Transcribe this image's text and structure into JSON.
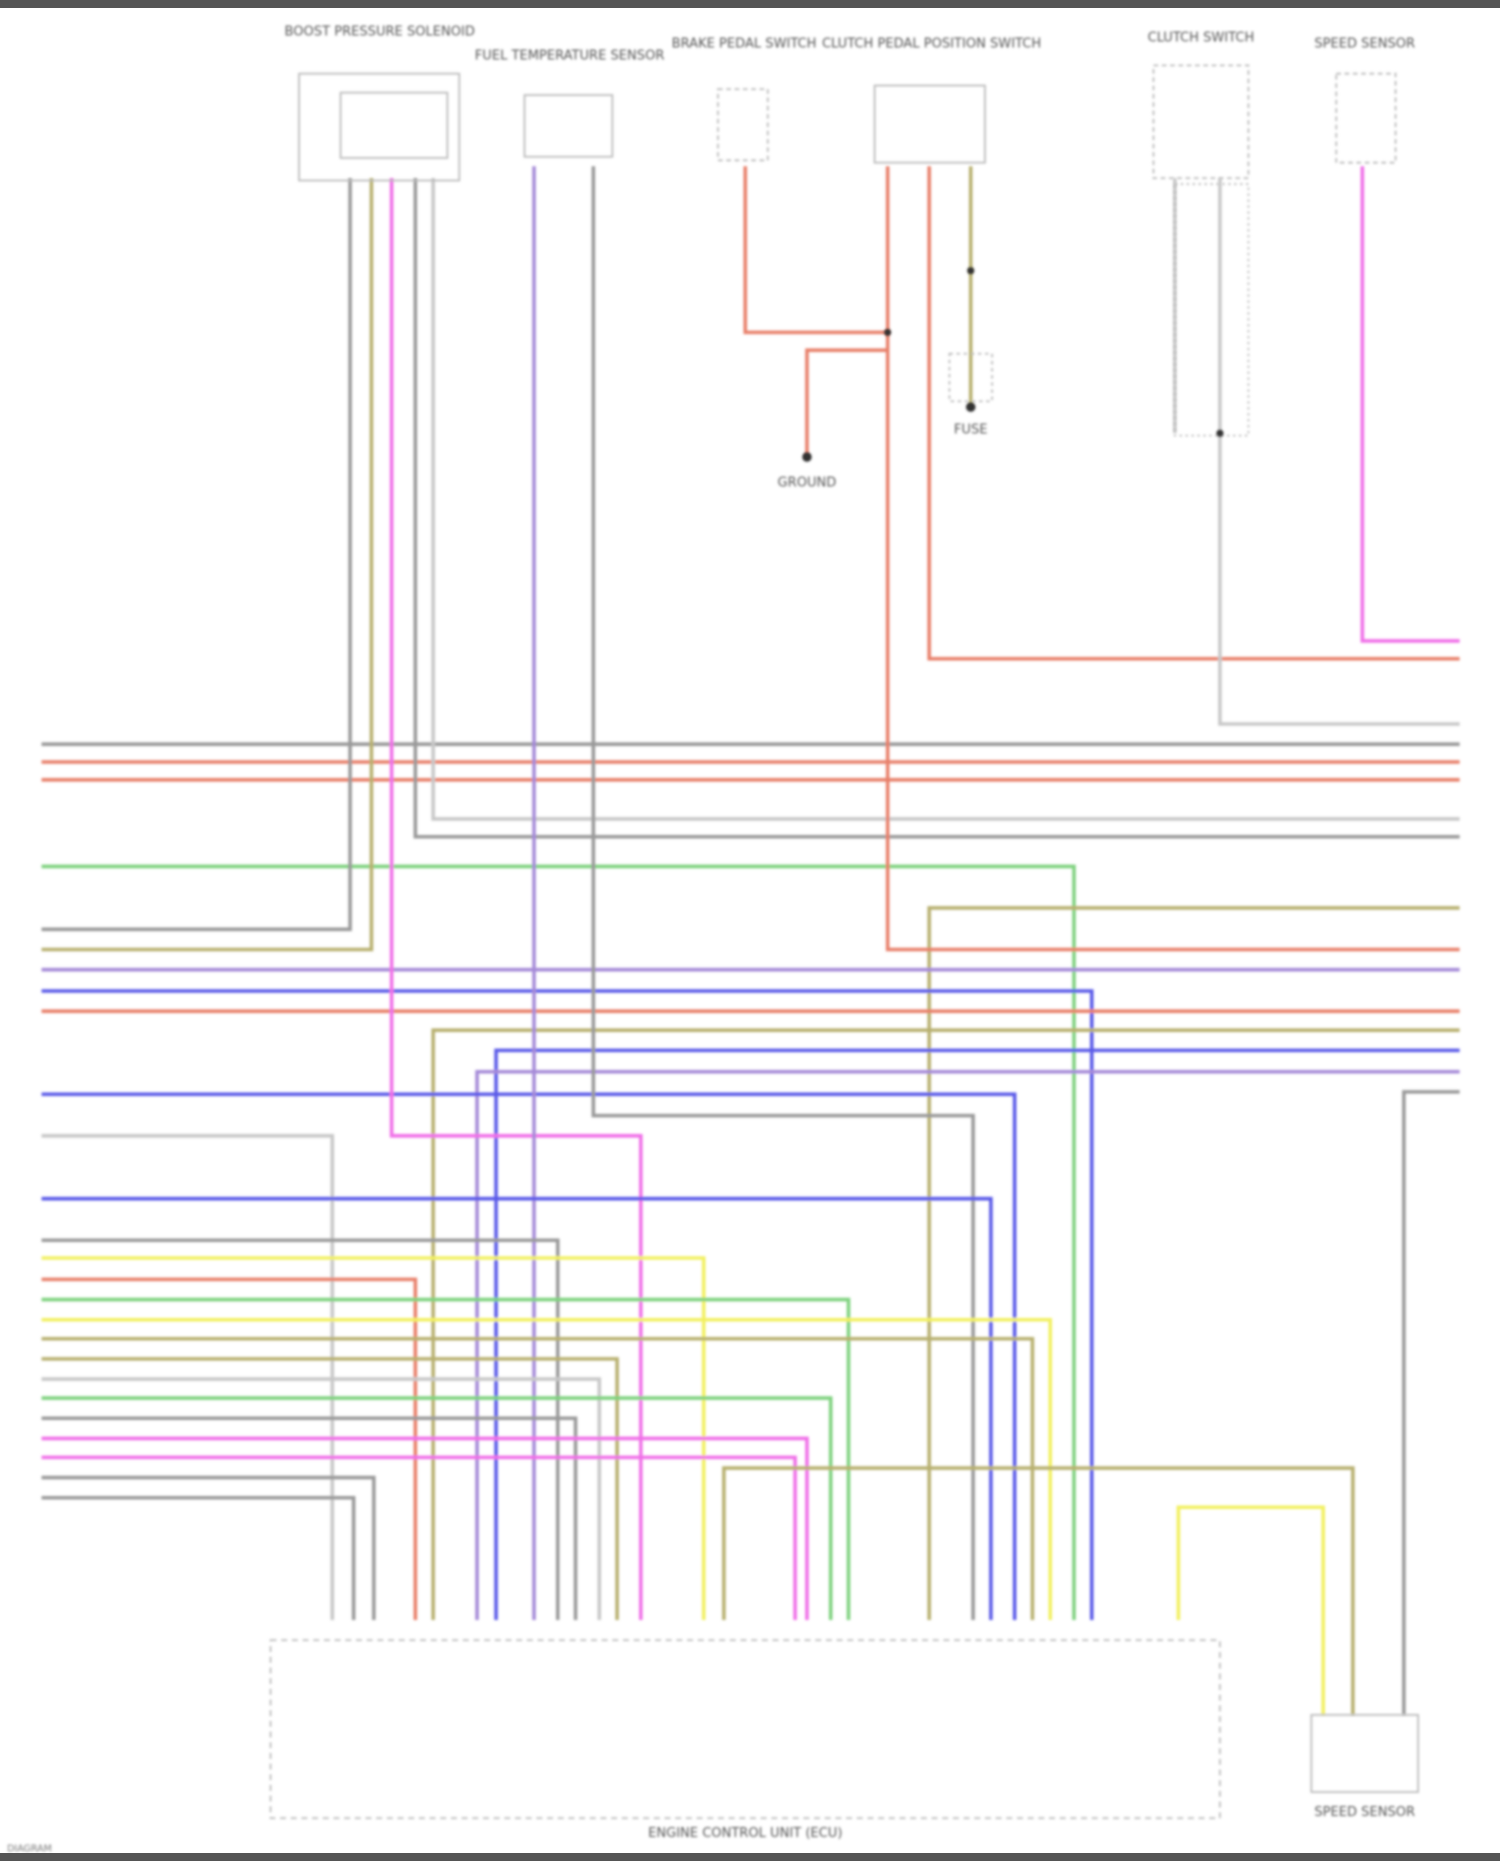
{
  "diagram": {
    "components": [
      {
        "id": "c1",
        "label": "BOOST PRESSURE SOLENOID"
      },
      {
        "id": "c2",
        "label": "FUEL TEMPERATURE SENSOR"
      },
      {
        "id": "c3",
        "label": "BRAKE PEDAL SWITCH"
      },
      {
        "id": "c4",
        "label": "CLUTCH PEDAL POSITION SWITCH"
      },
      {
        "id": "c5",
        "label": "CLUTCH SWITCH"
      },
      {
        "id": "c6",
        "label": "SPEED SENSOR"
      },
      {
        "id": "c7",
        "label": "GROUND"
      },
      {
        "id": "c8",
        "label": "FUSE"
      },
      {
        "id": "ecu",
        "label": "ENGINE CONTROL UNIT (ECU)"
      },
      {
        "id": "c9",
        "label": "SPEED SENSOR"
      }
    ],
    "footer_left": "DIAGRAM"
  },
  "wire_colors": {
    "gray": "#9a9a9a",
    "red": "#e8806a",
    "purple": "#a58ad8",
    "blue": "#5a5ae8",
    "green": "#7fd27f",
    "olive": "#b8b070",
    "pink": "#f070e8",
    "yellow": "#f2f060",
    "lightgray": "#c8c8c8"
  }
}
